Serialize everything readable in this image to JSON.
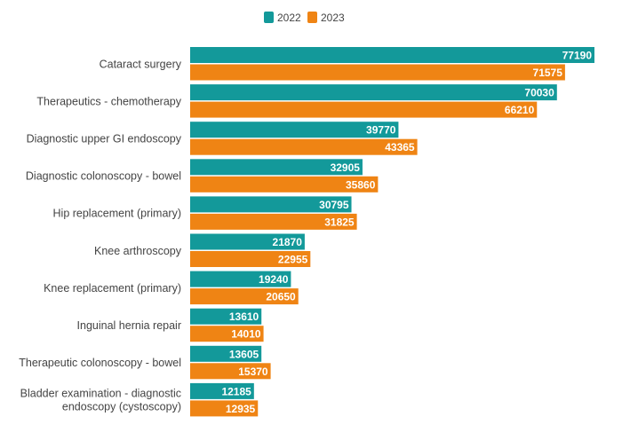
{
  "chart_data": {
    "type": "bar",
    "orientation": "horizontal",
    "title": "",
    "xlabel": "",
    "ylabel": "",
    "xlim": [
      0,
      77190
    ],
    "grid": false,
    "legend_position": "top-center",
    "categories": [
      [
        "Cataract surgery"
      ],
      [
        "Therapeutics - chemotherapy"
      ],
      [
        "Diagnostic upper GI endoscopy"
      ],
      [
        "Diagnostic colonoscopy - bowel"
      ],
      [
        "Hip replacement (primary)"
      ],
      [
        "Knee arthroscopy"
      ],
      [
        "Knee replacement (primary)"
      ],
      [
        "Inguinal hernia repair"
      ],
      [
        "Therapeutic colonoscopy - bowel"
      ],
      [
        "Bladder examination - diagnostic",
        "endoscopy (cystoscopy)"
      ]
    ],
    "series": [
      {
        "name": "2022",
        "color": "#13999a",
        "values": [
          77190,
          70030,
          39770,
          32905,
          30795,
          21870,
          19240,
          13610,
          13605,
          12185
        ]
      },
      {
        "name": "2023",
        "color": "#ef8414",
        "values": [
          71575,
          66210,
          43365,
          35860,
          31825,
          22955,
          20650,
          14010,
          15370,
          12935
        ]
      }
    ]
  }
}
